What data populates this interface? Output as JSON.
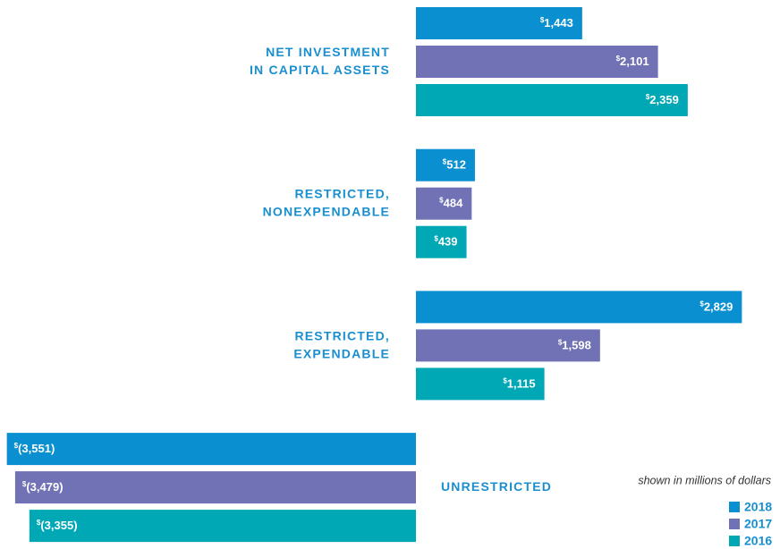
{
  "chart_data": {
    "type": "bar",
    "orientation": "horizontal",
    "categories": [
      [
        "NET INVESTMENT",
        "IN CAPITAL ASSETS"
      ],
      [
        "RESTRICTED,",
        "NONEXPENDABLE"
      ],
      [
        "RESTRICTED,",
        "EXPENDABLE"
      ],
      [
        "UNRESTRICTED"
      ]
    ],
    "series": [
      {
        "name": "2018",
        "color": "#0a8fd0",
        "values": [
          1443,
          512,
          2829,
          -3551
        ],
        "value_labels": [
          "$1,443",
          "$512",
          "$2,829",
          "$(3,551)"
        ]
      },
      {
        "name": "2017",
        "color": "#7171b5",
        "values": [
          2101,
          484,
          1598,
          -3479
        ],
        "value_labels": [
          "$2,101",
          "$484",
          "$1,598",
          "$(3,479)"
        ]
      },
      {
        "name": "2016",
        "color": "#00a7b5",
        "values": [
          2359,
          439,
          1115,
          -3355
        ],
        "value_labels": [
          "$2,359",
          "$439",
          "$1,115",
          "$(3,355)"
        ]
      }
    ],
    "annotation": "shown in millions of dollars",
    "legend": "bottom-right"
  }
}
